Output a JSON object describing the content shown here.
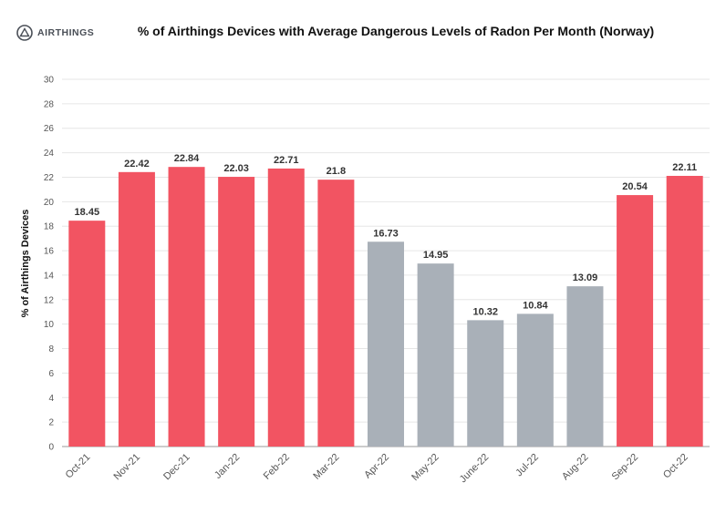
{
  "brand": {
    "name": "AIRTHINGS"
  },
  "colors": {
    "high": "#f25462",
    "low": "#a9b0b8",
    "grid": "#e6e6e6",
    "axis": "#9a9a9a"
  },
  "chart_data": {
    "type": "bar",
    "title": "% of Airthings Devices with Average Dangerous Levels of Radon Per Month (Norway)",
    "xlabel": "",
    "ylabel": "% of Airthings Devices",
    "ylim": [
      0,
      30
    ],
    "yticks": [
      0,
      2,
      4,
      6,
      8,
      10,
      12,
      14,
      16,
      18,
      20,
      22,
      24,
      26,
      28,
      30
    ],
    "grid": true,
    "categories": [
      "Oct-21",
      "Nov-21",
      "Dec-21",
      "Jan-22",
      "Feb-22",
      "Mar-22",
      "Apr-22",
      "May-22",
      "June-22",
      "Jul-22",
      "Aug-22",
      "Sep-22",
      "Oct-22"
    ],
    "values": [
      18.45,
      22.42,
      22.84,
      22.03,
      22.71,
      21.8,
      16.73,
      14.95,
      10.32,
      10.84,
      13.09,
      20.54,
      22.11
    ],
    "value_labels": [
      "18.45",
      "22.42",
      "22.84",
      "22.03",
      "22.71",
      "21.8",
      "16.73",
      "14.95",
      "10.32",
      "10.84",
      "13.09",
      "20.54",
      "22.11"
    ],
    "bar_color_groups": [
      "high",
      "high",
      "high",
      "high",
      "high",
      "high",
      "low",
      "low",
      "low",
      "low",
      "low",
      "high",
      "high"
    ]
  }
}
